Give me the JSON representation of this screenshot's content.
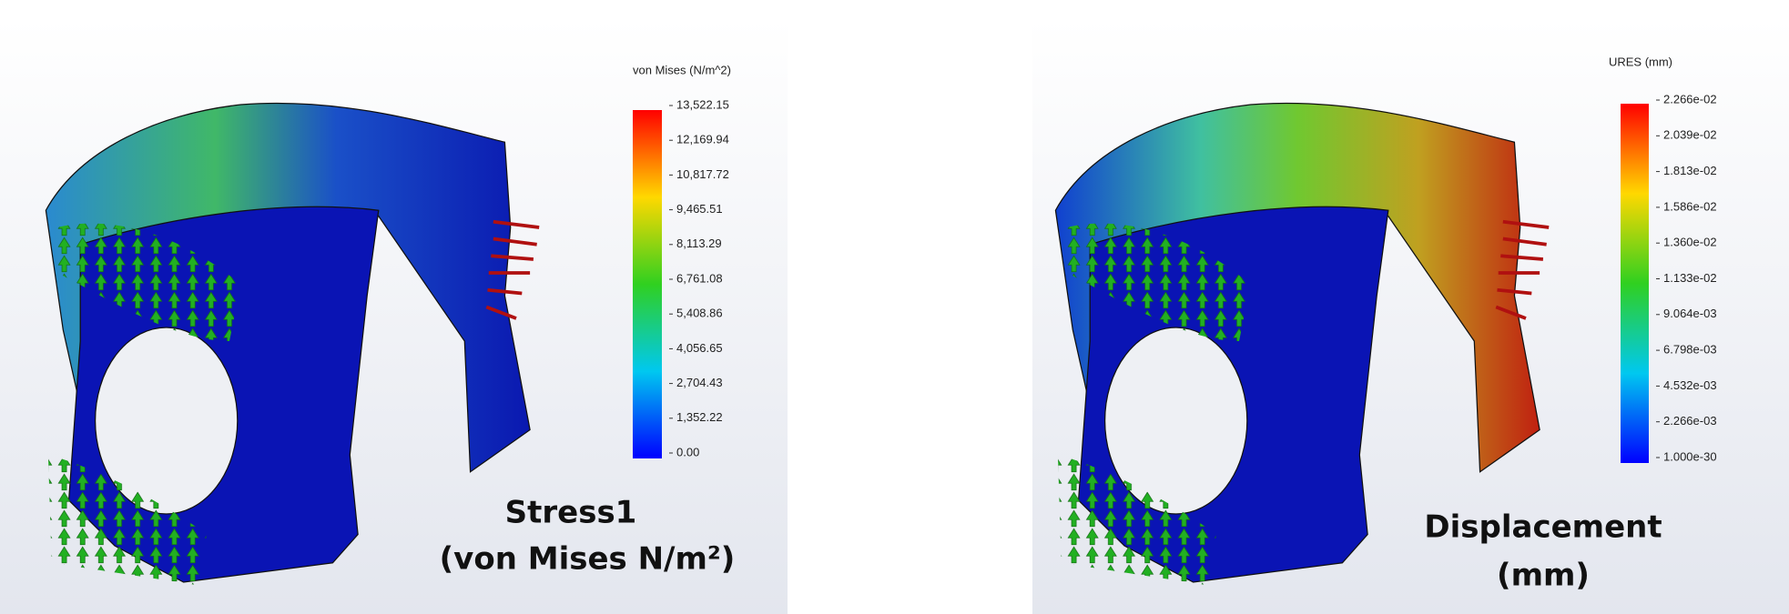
{
  "panels": [
    {
      "legend": {
        "title": "von Mises (N/m^2)",
        "ticks": [
          "13,522.15",
          "12,169.94",
          "10,817.72",
          "9,465.51",
          "8,113.29",
          "6,761.08",
          "5,408.86",
          "4,056.65",
          "2,704.43",
          "1,352.22",
          "0.00"
        ]
      },
      "caption": [
        "Stress1",
        "(von Mises N/m²)"
      ]
    },
    {
      "legend": {
        "title": "URES (mm)",
        "ticks": [
          "2.266e-02",
          "2.039e-02",
          "1.813e-02",
          "1.586e-02",
          "1.360e-02",
          "1.133e-02",
          "9.064e-03",
          "6.798e-03",
          "4.532e-03",
          "2.266e-03",
          "1.000e-30"
        ]
      },
      "caption": [
        "Displacement",
        "(mm)"
      ]
    }
  ]
}
